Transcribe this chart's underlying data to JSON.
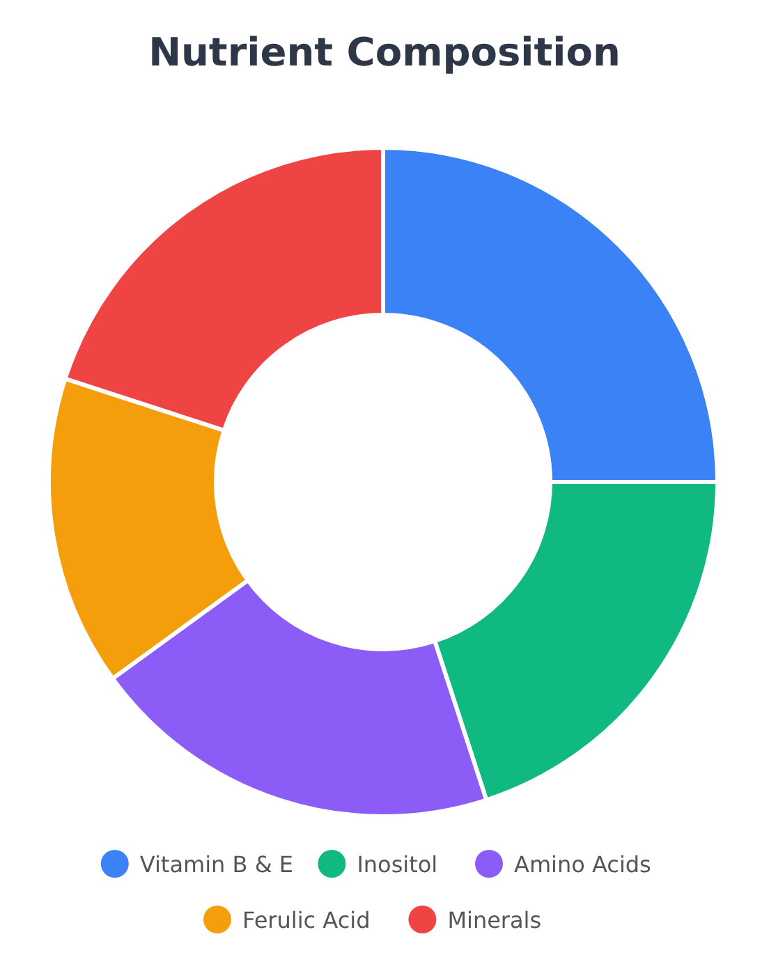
{
  "chart_data": {
    "type": "donut",
    "title": "Nutrient Composition",
    "categories": [
      "Vitamin B & E",
      "Inositol",
      "Amino Acids",
      "Ferulic Acid",
      "Minerals"
    ],
    "values": [
      25,
      20,
      20,
      15,
      20
    ],
    "colors": [
      "#3b82f6",
      "#10b981",
      "#8b5cf6",
      "#f59e0b",
      "#ef4444"
    ],
    "legend": "bottom"
  }
}
